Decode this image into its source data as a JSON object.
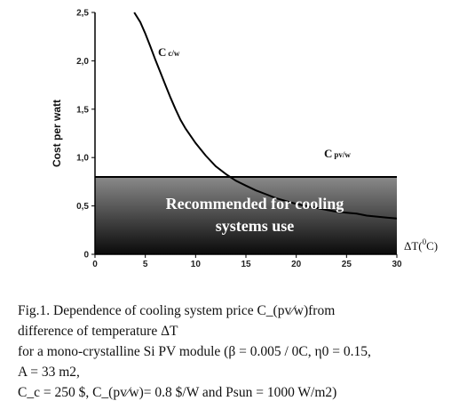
{
  "chart_data": {
    "type": "line",
    "x": [
      3.9,
      4.5,
      5,
      5.5,
      6,
      6.5,
      7,
      7.5,
      8,
      8.5,
      9,
      10,
      11,
      12,
      13,
      14,
      15,
      16,
      17,
      18,
      19,
      20,
      21,
      22,
      23,
      24,
      25,
      26,
      27,
      28,
      29,
      30
    ],
    "series": [
      {
        "name": "C c/w",
        "values": [
          2.5,
          2.4,
          2.28,
          2.15,
          2.01,
          1.88,
          1.75,
          1.62,
          1.5,
          1.39,
          1.3,
          1.15,
          1.02,
          0.91,
          0.83,
          0.76,
          0.71,
          0.66,
          0.62,
          0.58,
          0.55,
          0.52,
          0.5,
          0.48,
          0.46,
          0.44,
          0.43,
          0.42,
          0.4,
          0.39,
          0.38,
          0.37
        ]
      },
      {
        "name": "C pv/w",
        "values": [
          0.8,
          0.8,
          0.8,
          0.8,
          0.8,
          0.8,
          0.8,
          0.8,
          0.8,
          0.8,
          0.8,
          0.8,
          0.8,
          0.8,
          0.8,
          0.8,
          0.8,
          0.8,
          0.8,
          0.8,
          0.8,
          0.8,
          0.8,
          0.8,
          0.8,
          0.8,
          0.8,
          0.8,
          0.8,
          0.8,
          0.8,
          0.8
        ]
      }
    ],
    "xlim": [
      0,
      30
    ],
    "ylim": [
      0,
      2.5
    ],
    "x_ticks": [
      0,
      5,
      10,
      15,
      20,
      25,
      30
    ],
    "y_ticks": [
      0,
      0.5,
      1.0,
      1.5,
      2.0,
      2.5
    ],
    "x_tick_labels": [
      "0",
      "5",
      "10",
      "15",
      "20",
      "25",
      "30"
    ],
    "y_tick_labels": [
      "0",
      "0,5",
      "1,0",
      "1,5",
      "2,0",
      "2,5"
    ],
    "ylabel": "Cost per watt",
    "xlabel_base": "ΔT(",
    "xlabel_sup": "0",
    "xlabel_end": "C)",
    "curve_label_cw_main": "C",
    "curve_label_cw_sub": "c/w",
    "curve_label_pvw_main": "C",
    "curve_label_pvw_sub": "pv/w",
    "region_text_line1": "Recommended for cooling",
    "region_text_line2": "systems use",
    "region_threshold": 0.8,
    "colors": {
      "curve": "#000000",
      "region_top": "#8a8a8a",
      "region_bottom": "#0a0a0a"
    }
  },
  "caption": {
    "line1": "Fig.1. Dependence of cooling system price C_(pv⁄w)from",
    "line2": "difference of temperature ΔT",
    "line3": "for a mono-crystalline Si PV module (β = 0.005 / 0C, η0 = 0.15,",
    "line4": "A = 33 m2,",
    "line5": "C_c = 250 $, C_(pv⁄w)= 0.8 $/W and Psun = 1000 W/m2)"
  }
}
